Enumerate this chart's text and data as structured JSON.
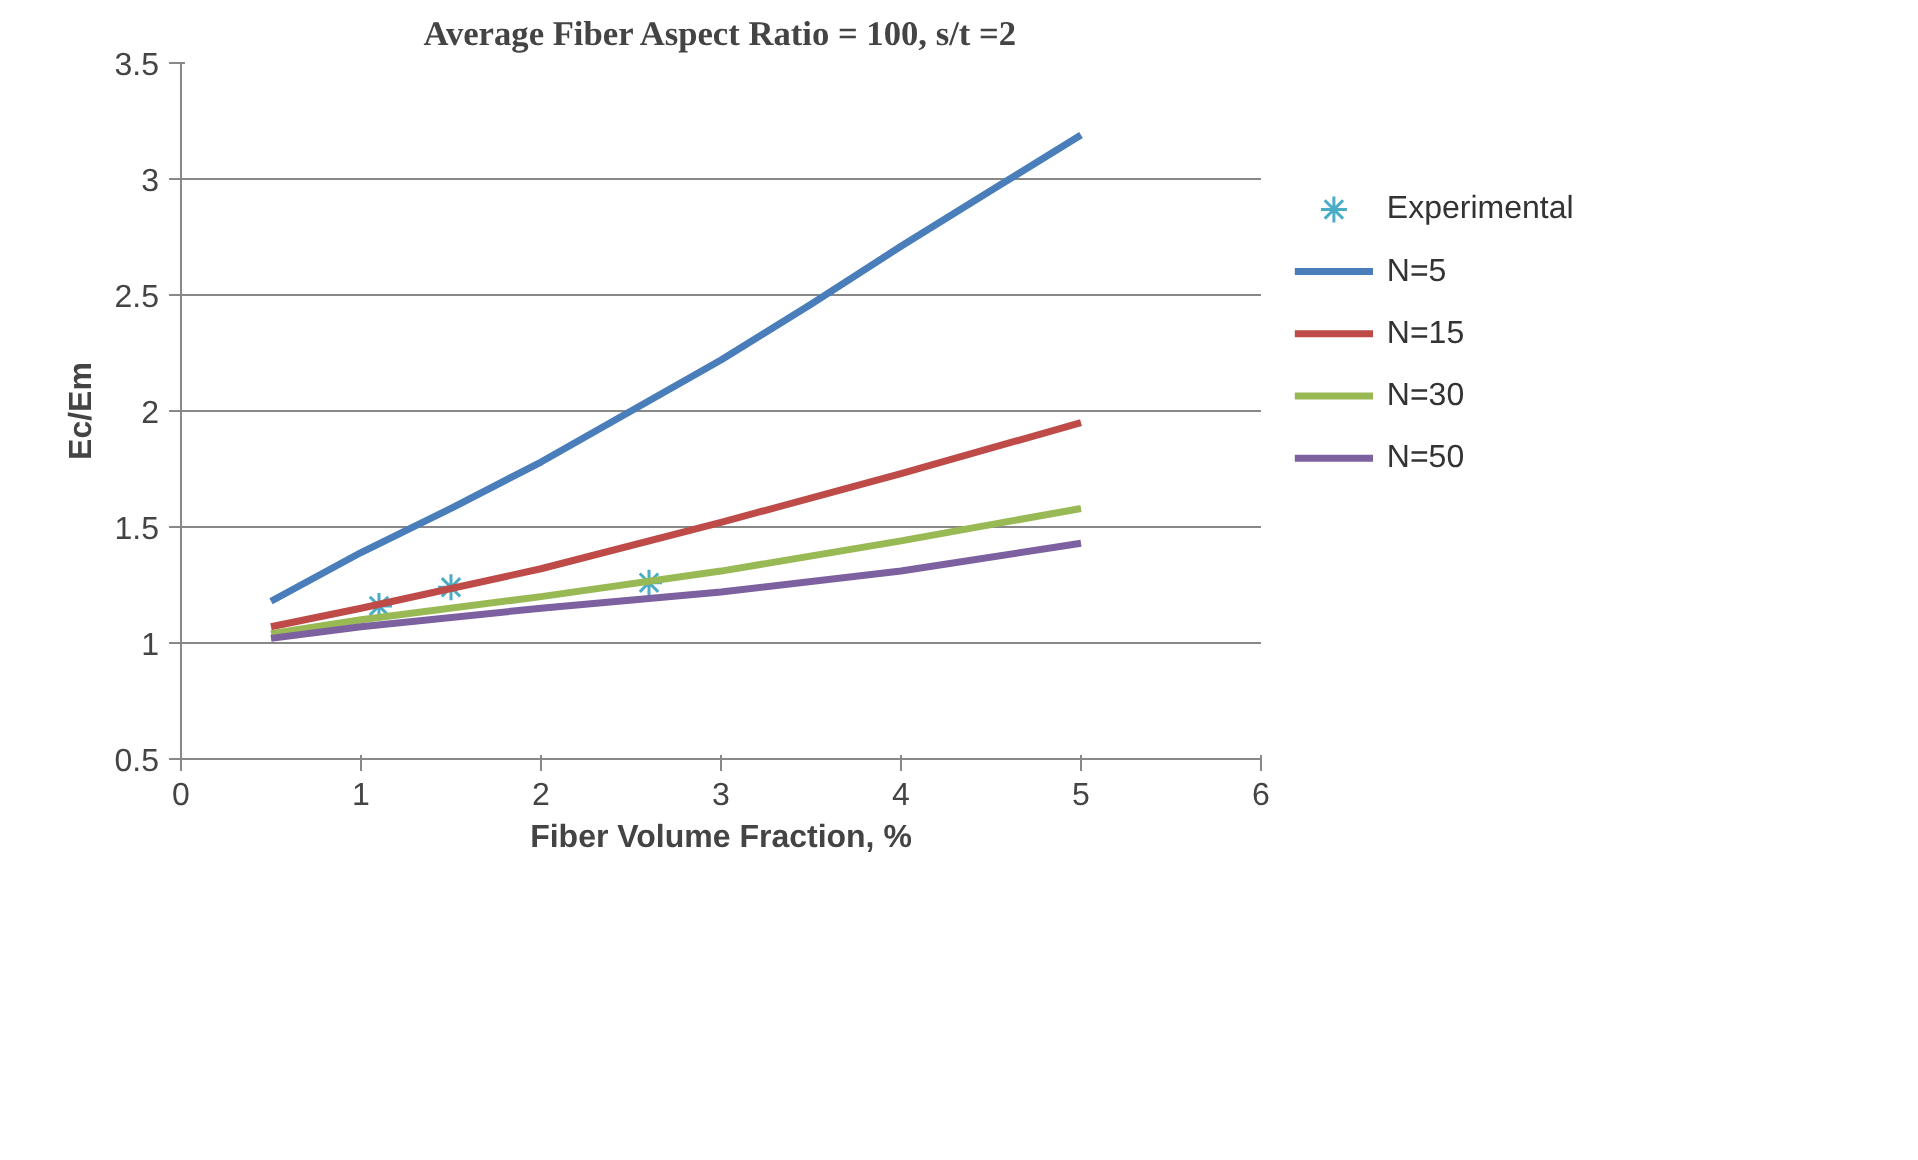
{
  "chart_data": {
    "type": "line",
    "title": "Average Fiber Aspect Ratio = 100, s/t =2",
    "xlabel": "Fiber Volume Fraction, %",
    "ylabel": "Ec/Em",
    "xlim": [
      0,
      6
    ],
    "xticks": [
      0,
      1,
      2,
      3,
      4,
      5,
      6
    ],
    "ylim": [
      0.5,
      3.5
    ],
    "yticks": [
      0.5,
      1,
      {
        "value": 1.5,
        "label": "1.5"
      },
      2,
      {
        "value": 2.5,
        "label": "2.5"
      },
      3,
      {
        "value": 3.5,
        "label": "3.5"
      }
    ],
    "grid": "y",
    "legend": "right",
    "series": [
      {
        "name": "Experimental",
        "type": "scatter",
        "marker": "cross",
        "color": "#4bacc6",
        "x": [
          1.1,
          1.5,
          2.6
        ],
        "values": [
          1.16,
          1.24,
          1.26
        ]
      },
      {
        "name": "N=5",
        "color": "#4a7ebb",
        "x": [
          0.5,
          1,
          1.5,
          2,
          2.5,
          3,
          3.5,
          4,
          4.5,
          5
        ],
        "values": [
          1.18,
          1.39,
          1.58,
          1.78,
          2.0,
          2.22,
          2.46,
          2.71,
          2.95,
          3.19
        ]
      },
      {
        "name": "N=15",
        "color": "#be4b48",
        "x": [
          0.5,
          1,
          2,
          3,
          4,
          5
        ],
        "values": [
          1.07,
          1.15,
          1.32,
          1.52,
          1.73,
          1.95
        ]
      },
      {
        "name": "N=30",
        "color": "#98b954",
        "x": [
          0.5,
          1,
          2,
          3,
          4,
          5
        ],
        "values": [
          1.04,
          1.1,
          1.2,
          1.31,
          1.44,
          1.58
        ]
      },
      {
        "name": "N=50",
        "color": "#7d60a0",
        "x": [
          0.5,
          1,
          2,
          3,
          4,
          5
        ],
        "values": [
          1.02,
          1.07,
          1.15,
          1.22,
          1.31,
          1.43
        ]
      }
    ]
  }
}
